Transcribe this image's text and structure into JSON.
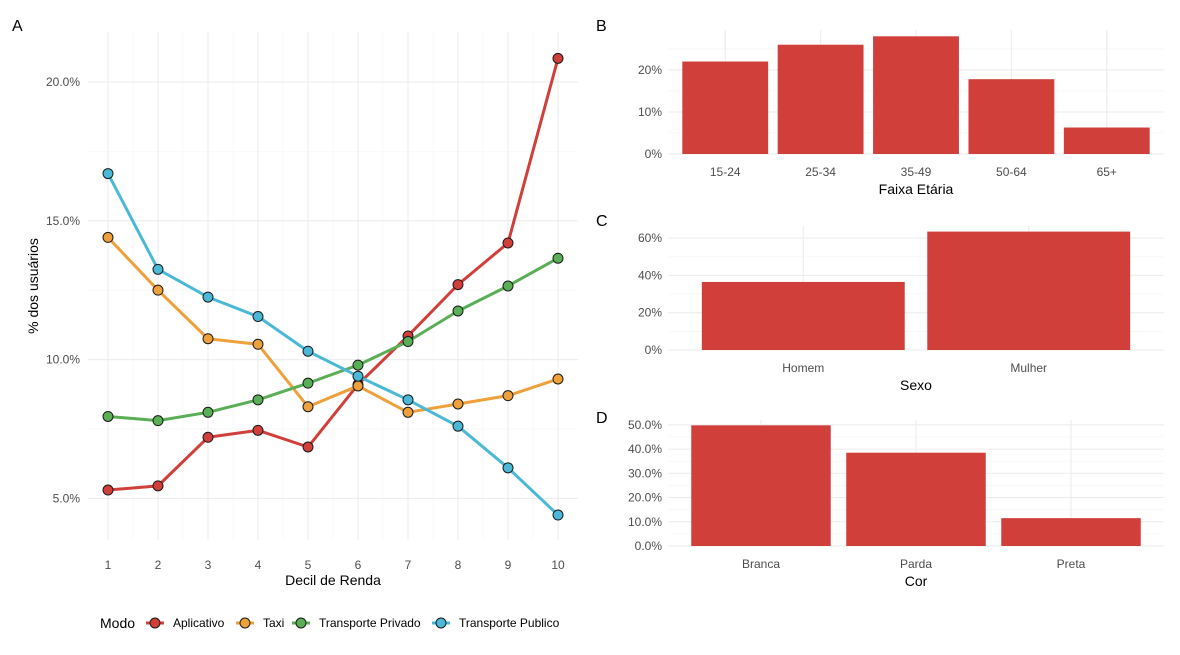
{
  "panels": {
    "A": "A",
    "B": "B",
    "C": "C",
    "D": "D"
  },
  "legend": {
    "title": "Modo"
  },
  "colors": {
    "Aplicativo": "#d13f3a",
    "Taxi": "#eea03a",
    "Transporte Privado": "#5aae55",
    "Transporte Publico": "#4ab8d6",
    "bar": "#d13f3a"
  },
  "chart_data": [
    {
      "type": "line",
      "panel": "A",
      "xlabel": "Decil de Renda",
      "ylabel": "% dos usuários",
      "x": [
        1,
        2,
        3,
        4,
        5,
        6,
        7,
        8,
        9,
        10
      ],
      "xlim": [
        0.6,
        10.4
      ],
      "ylim": [
        3.5,
        21.8
      ],
      "yticks": [
        5,
        10,
        15,
        20
      ],
      "ytick_labels": [
        "5.0%",
        "10.0%",
        "15.0%",
        "20.0%"
      ],
      "grid": true,
      "legend_position": "bottom",
      "series": [
        {
          "name": "Aplicativo",
          "values": [
            5.3,
            5.45,
            7.2,
            7.45,
            6.85,
            9.1,
            10.85,
            12.7,
            14.2,
            20.85
          ]
        },
        {
          "name": "Taxi",
          "values": [
            14.4,
            12.5,
            10.75,
            10.55,
            8.3,
            9.05,
            8.1,
            8.4,
            8.7,
            9.3
          ]
        },
        {
          "name": "Transporte Privado",
          "values": [
            7.95,
            7.8,
            8.1,
            8.55,
            9.15,
            9.8,
            10.65,
            11.75,
            12.65,
            13.65
          ]
        },
        {
          "name": "Transporte Publico",
          "values": [
            16.7,
            13.25,
            12.25,
            11.55,
            10.3,
            9.4,
            8.55,
            7.6,
            6.1,
            4.4
          ]
        }
      ]
    },
    {
      "type": "bar",
      "panel": "B",
      "xlabel": "Faixa Etária",
      "categories": [
        "15-24",
        "25-34",
        "35-49",
        "50-64",
        "65+"
      ],
      "values": [
        22.0,
        26.0,
        28.0,
        17.8,
        6.3
      ],
      "ylim": [
        0,
        29.5
      ],
      "yticks": [
        0,
        10,
        20
      ],
      "ytick_labels": [
        "0%",
        "10%",
        "20%"
      ],
      "grid": true
    },
    {
      "type": "bar",
      "panel": "C",
      "xlabel": "Sexo",
      "categories": [
        "Homem",
        "Mulher"
      ],
      "values": [
        36.5,
        63.5
      ],
      "ylim": [
        0,
        66.5
      ],
      "yticks": [
        0,
        20,
        40,
        60
      ],
      "ytick_labels": [
        "0%",
        "20%",
        "40%",
        "60%"
      ],
      "grid": true
    },
    {
      "type": "bar",
      "panel": "D",
      "xlabel": "Cor",
      "categories": [
        "Branca",
        "Parda",
        "Preta"
      ],
      "values": [
        49.8,
        38.5,
        11.5
      ],
      "ylim": [
        0,
        52
      ],
      "yticks": [
        0,
        10,
        20,
        30,
        40,
        50
      ],
      "ytick_labels": [
        "0.0%",
        "10.0%",
        "20.0%",
        "30.0%",
        "40.0%",
        "50.0%"
      ],
      "grid": true
    }
  ]
}
